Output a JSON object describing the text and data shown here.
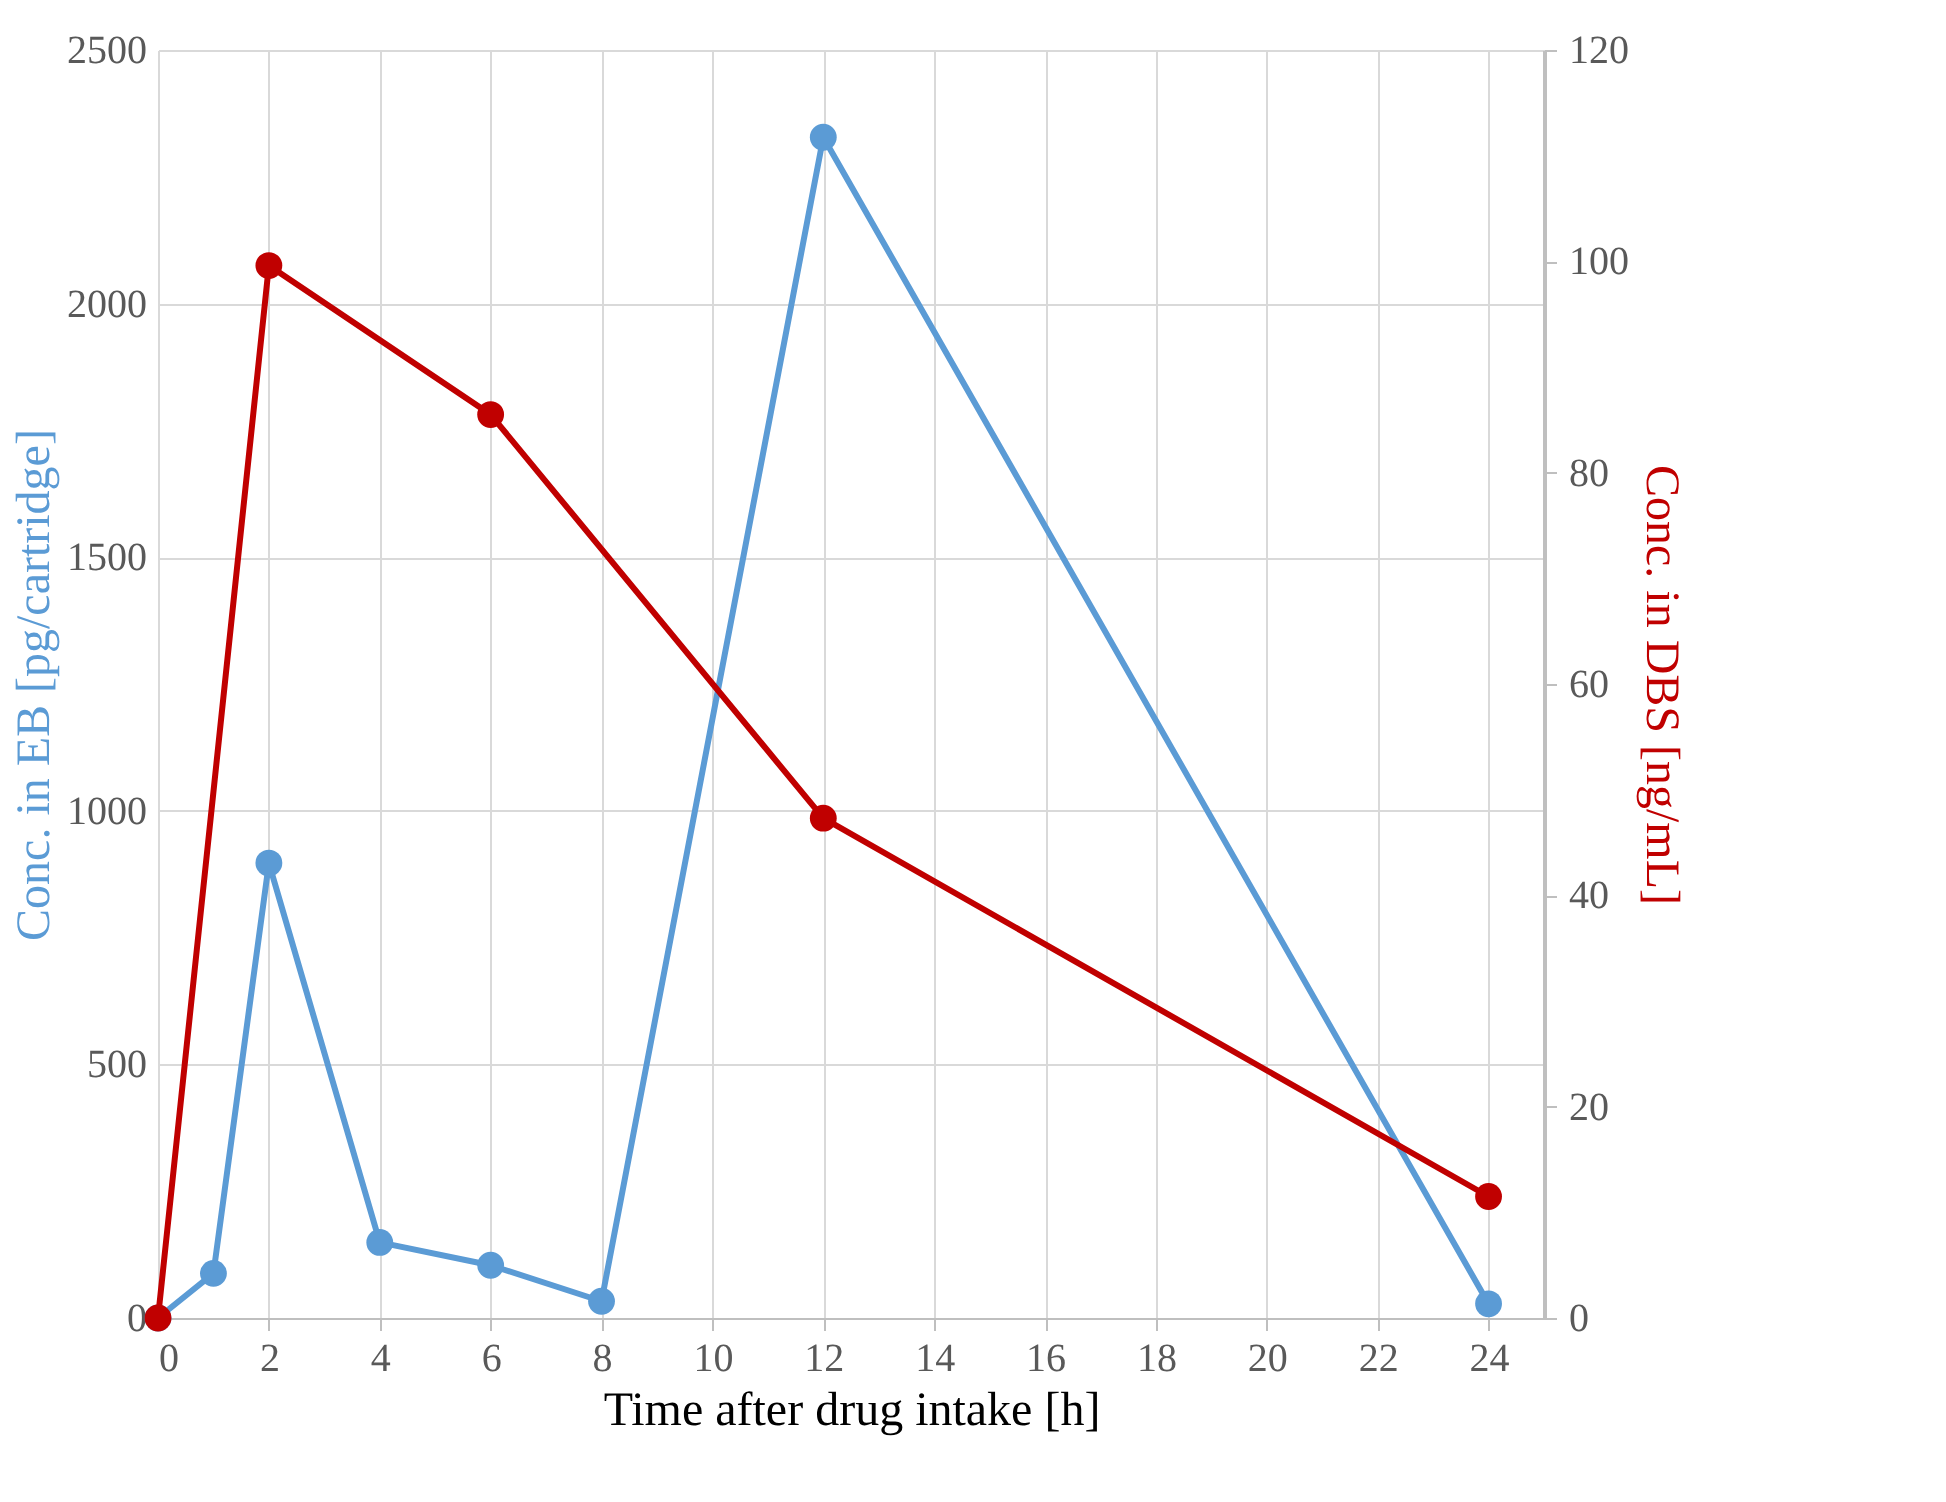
{
  "chart_data": {
    "type": "line",
    "xlabel": "Time after drug intake [h]",
    "ylabel": "Conc. in EB [pg/cartridge]",
    "y2label": "Conc. in DBS [ng/mL]",
    "xlim": [
      0,
      25
    ],
    "xticks": [
      0,
      2,
      4,
      6,
      8,
      10,
      12,
      14,
      16,
      18,
      20,
      22,
      24
    ],
    "ylim": [
      0,
      2500
    ],
    "yticks": [
      0,
      500,
      1000,
      1500,
      2000,
      2500
    ],
    "y2lim": [
      0,
      120
    ],
    "y2ticks": [
      0,
      20,
      40,
      60,
      80,
      100,
      120
    ],
    "grid": true,
    "marker": "circle",
    "line_style": "solid",
    "series": [
      {
        "color": "#5b9bd5",
        "x": [
          0,
          1,
          2,
          4,
          6,
          8,
          12,
          24
        ],
        "values": [
          0,
          88,
          897,
          149,
          104,
          33,
          2328,
          28
        ]
      },
      {
        "color": "#c00000",
        "axis": "y2",
        "x": [
          0,
          2,
          6,
          12,
          24
        ],
        "values": [
          0,
          99.6,
          85.5,
          47.3,
          11.5
        ]
      }
    ]
  }
}
